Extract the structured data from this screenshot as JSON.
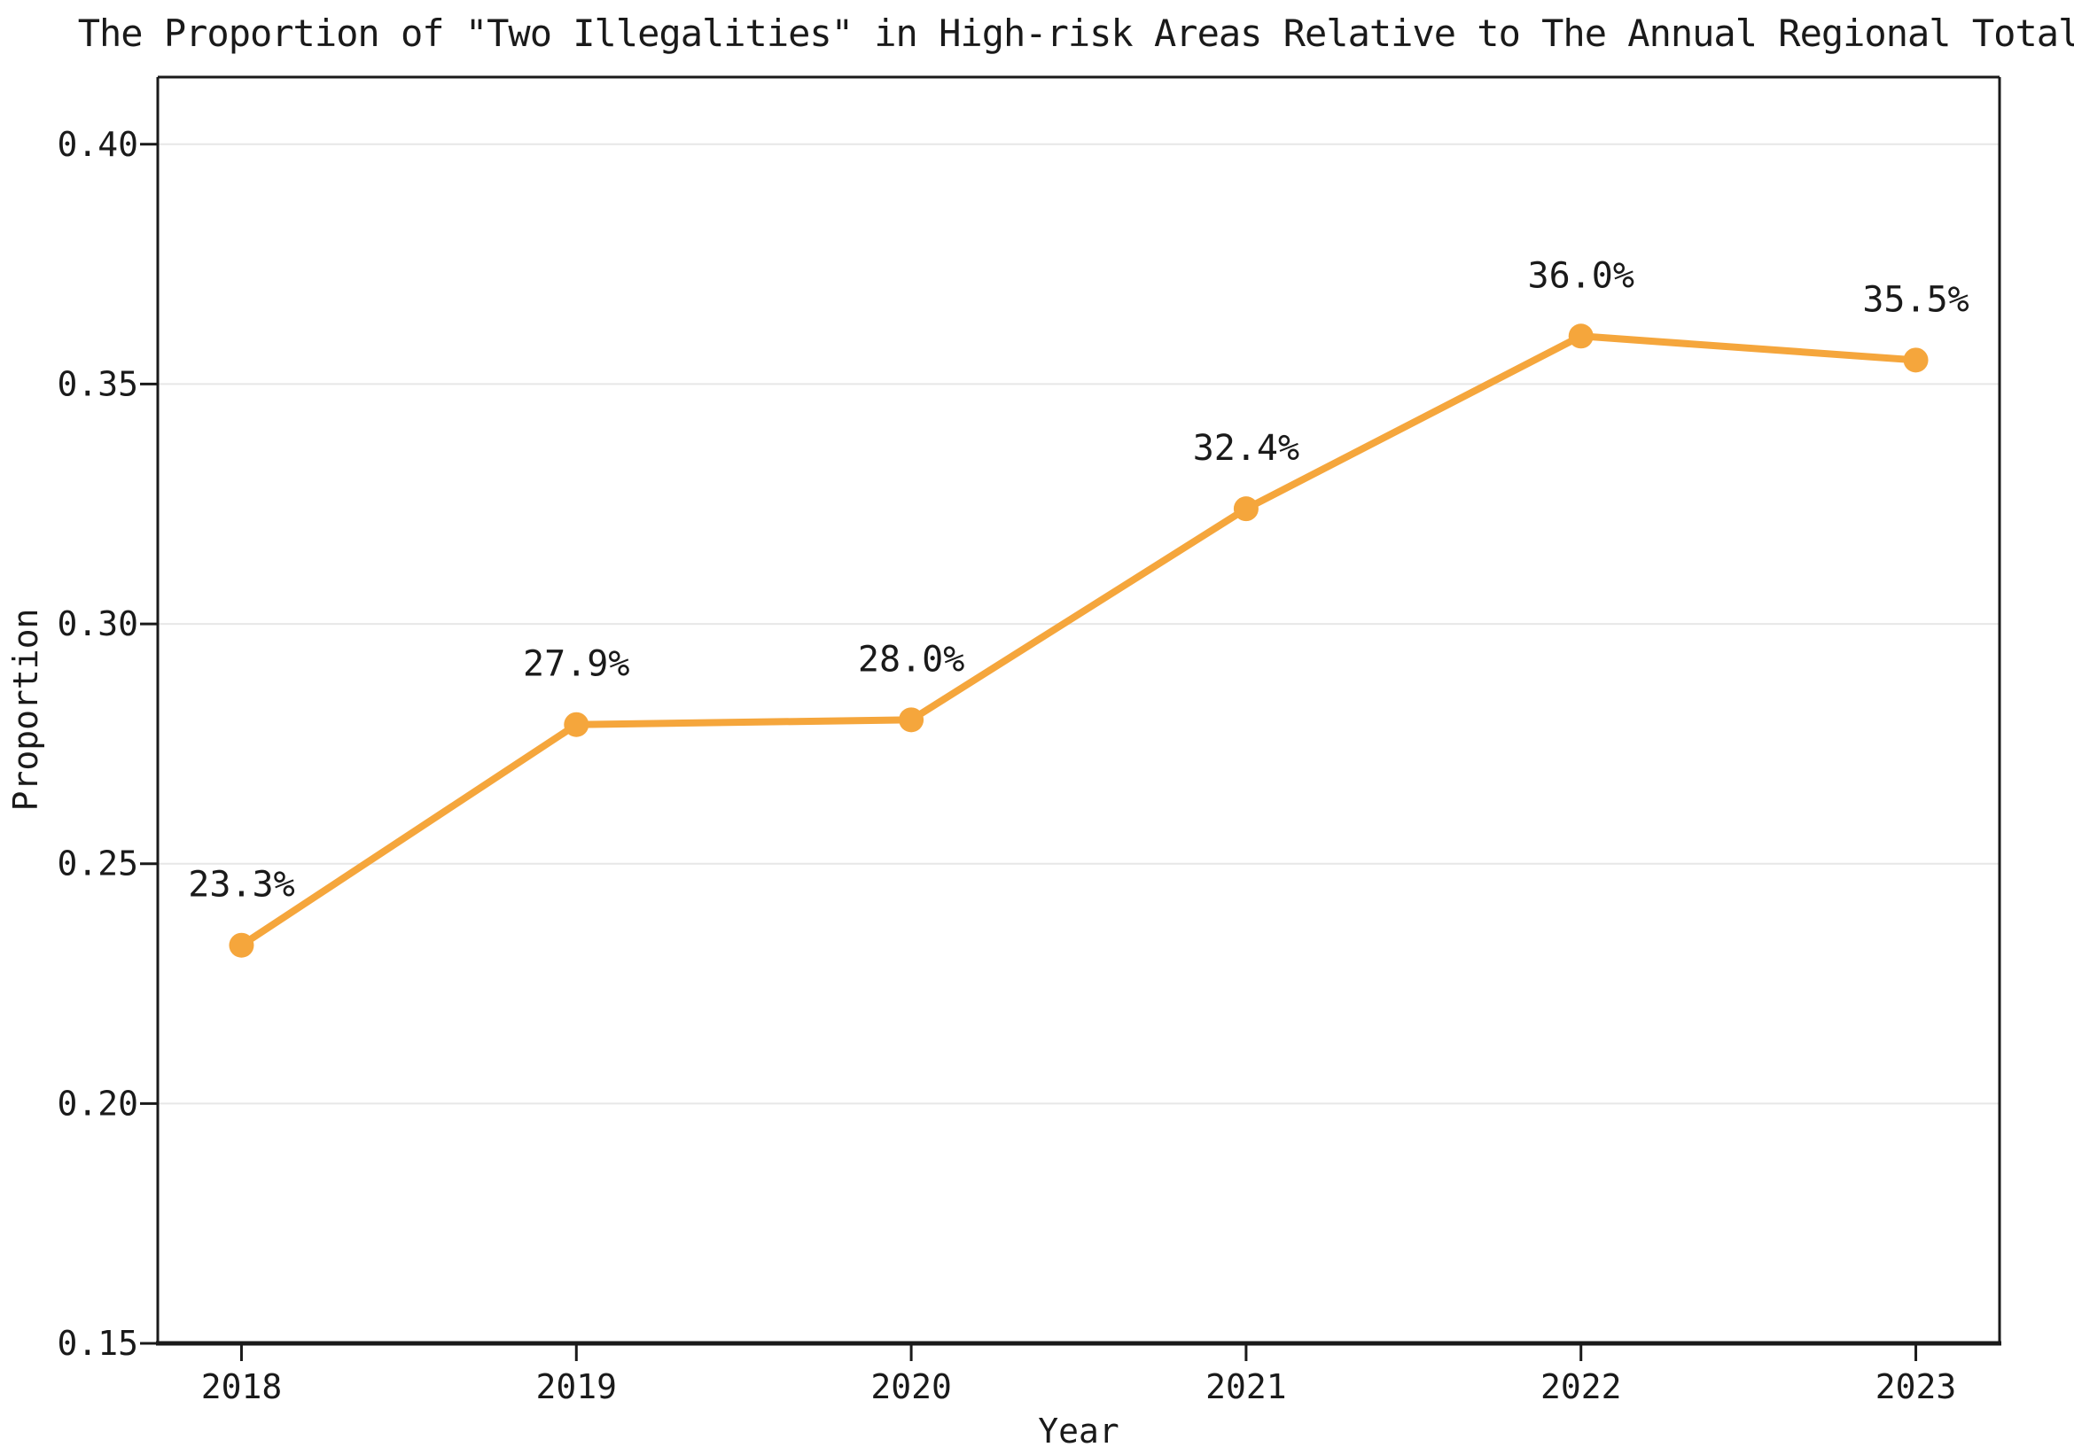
{
  "chart_data": {
    "type": "line",
    "title": "The Proportion of \"Two Illegalities\" in High-risk Areas Relative to The Annual Regional Total",
    "xlabel": "Year",
    "ylabel": "Proportion",
    "x": [
      2018,
      2019,
      2020,
      2021,
      2022,
      2023
    ],
    "values": [
      0.233,
      0.279,
      0.28,
      0.324,
      0.36,
      0.355
    ],
    "point_labels": [
      "23.3%",
      "27.9%",
      "28.0%",
      "32.4%",
      "36.0%",
      "35.5%"
    ],
    "xtick_labels": [
      "2018",
      "2019",
      "2020",
      "2021",
      "2022",
      "2023"
    ],
    "yticks": [
      0.15,
      0.2,
      0.25,
      0.3,
      0.35,
      0.4
    ],
    "ytick_labels": [
      "0.15",
      "0.20",
      "0.25",
      "0.30",
      "0.35",
      "0.40"
    ],
    "xlim": [
      2017.75,
      2023.25
    ],
    "ylim": [
      0.15,
      0.414
    ],
    "grid": "horizontal-only",
    "legend": "none",
    "line_color": "#F5A63C",
    "marker": "circle",
    "grid_color": "#E7E7E7",
    "spine_color": "#1A1A1A",
    "text_color": "#1A1A1A"
  }
}
